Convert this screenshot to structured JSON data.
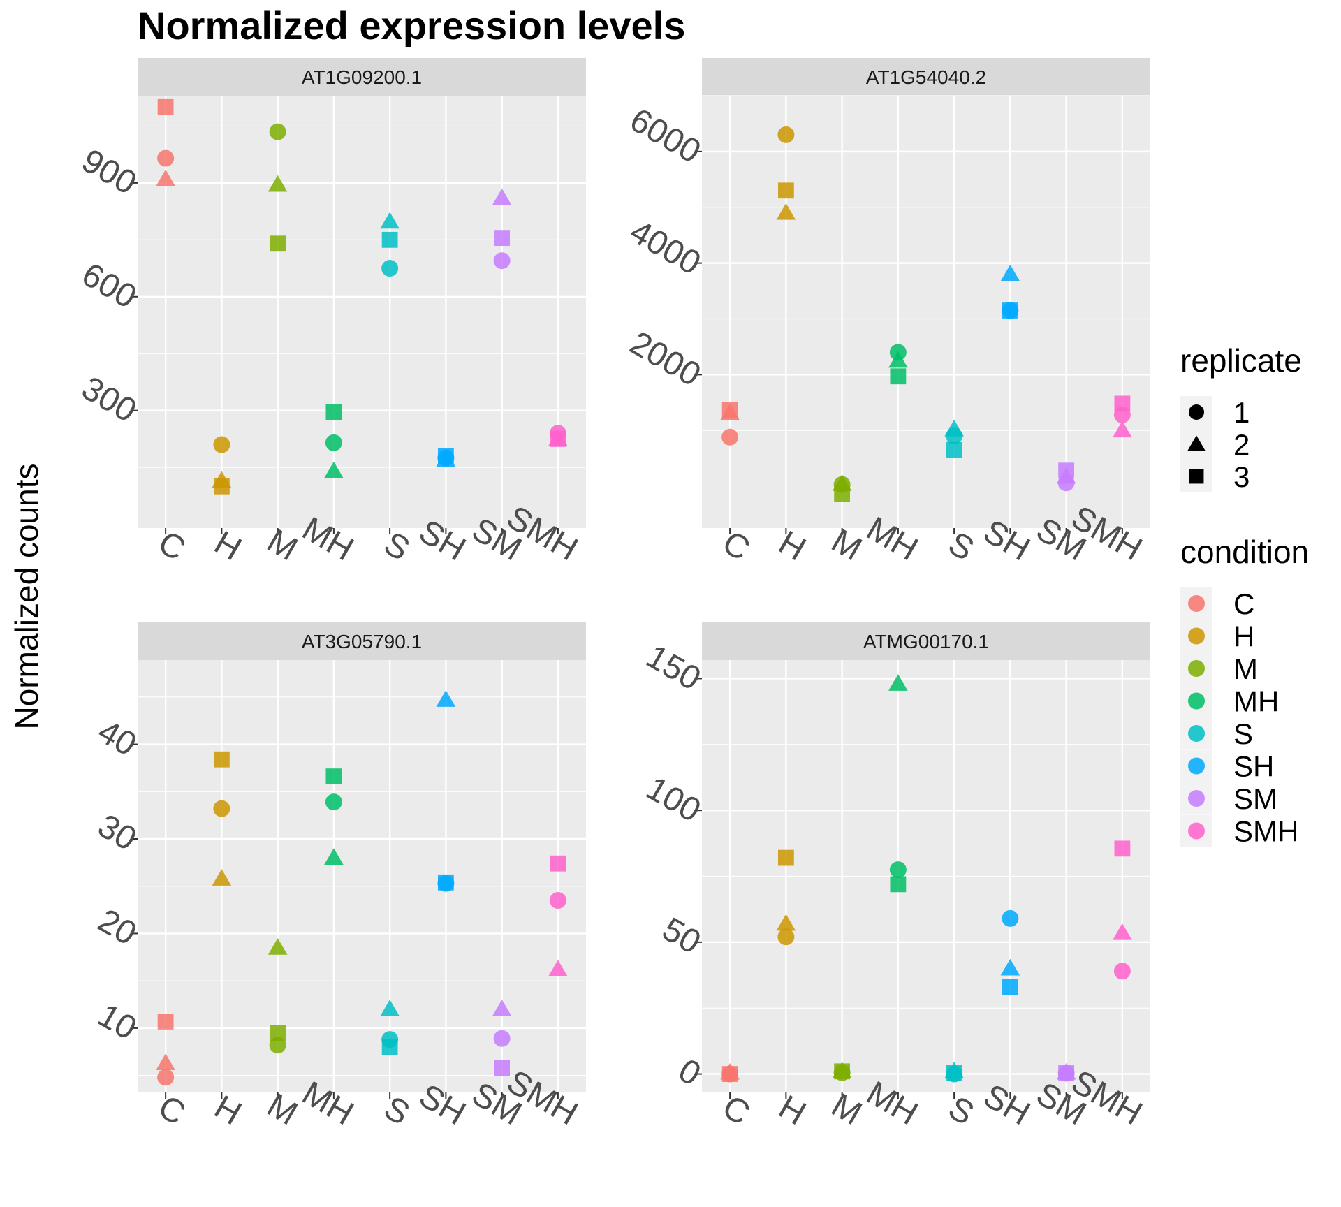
{
  "title": "Normalized expression levels",
  "y_axis_label": "Normalized counts",
  "colors": {
    "panel_bg": "#EBEBEB",
    "strip_bg": "#D9D9D9",
    "grid": "#FFFFFF",
    "C": "#F8766D",
    "H": "#CD9600",
    "M": "#7CAE00",
    "MH": "#00BE67",
    "S": "#00BFC4",
    "SH": "#00A9FF",
    "SM": "#C77CFF",
    "SMH": "#FF61CC"
  },
  "legend": {
    "replicate": {
      "title": "replicate",
      "items": [
        {
          "label": "1",
          "shape": "circle"
        },
        {
          "label": "2",
          "shape": "triangle"
        },
        {
          "label": "3",
          "shape": "square"
        }
      ]
    },
    "condition": {
      "title": "condition",
      "items": [
        "C",
        "H",
        "M",
        "MH",
        "S",
        "SH",
        "SM",
        "SMH"
      ]
    }
  },
  "chart_data": [
    {
      "type": "scatter",
      "facet": "AT1G09200.1",
      "categories": [
        "C",
        "H",
        "M",
        "MH",
        "S",
        "SH",
        "SM",
        "SMH"
      ],
      "yticks": [
        300,
        600,
        900
      ],
      "ylim": [
        -10,
        1130
      ],
      "series": [
        {
          "name": "1",
          "values": [
            965,
            210,
            1035,
            215,
            675,
            175,
            695,
            240
          ]
        },
        {
          "name": "2",
          "values": [
            910,
            115,
            895,
            140,
            798,
            170,
            860,
            225
          ]
        },
        {
          "name": "3",
          "values": [
            1100,
            100,
            740,
            295,
            750,
            180,
            755,
            225
          ]
        }
      ]
    },
    {
      "type": "scatter",
      "facet": "AT1G54040.2",
      "categories": [
        "C",
        "H",
        "M",
        "MH",
        "S",
        "SH",
        "SM",
        "SMH"
      ],
      "yticks": [
        2000,
        4000,
        6000
      ],
      "ylim": [
        -750,
        7000
      ],
      "series": [
        {
          "name": "1",
          "values": [
            880,
            6300,
            30,
            2400,
            900,
            3150,
            60,
            1280
          ]
        },
        {
          "name": "2",
          "values": [
            1310,
            4900,
            40,
            2250,
            1020,
            3800,
            170,
            1000
          ]
        },
        {
          "name": "3",
          "values": [
            1370,
            5300,
            -140,
            1970,
            650,
            3150,
            280,
            1480
          ]
        }
      ]
    },
    {
      "type": "scatter",
      "facet": "AT3G05790.1",
      "categories": [
        "C",
        "H",
        "M",
        "MH",
        "S",
        "SH",
        "SM",
        "SMH"
      ],
      "yticks": [
        10,
        20,
        30,
        40
      ],
      "ylim": [
        3.2,
        48.9
      ],
      "series": [
        {
          "name": "1",
          "values": [
            4.8,
            33.2,
            8.2,
            33.9,
            8.8,
            25.3,
            8.9,
            23.5
          ]
        },
        {
          "name": "2",
          "values": [
            6.3,
            25.8,
            18.5,
            28.0,
            12.0,
            44.7,
            12.0,
            16.2
          ]
        },
        {
          "name": "3",
          "values": [
            10.7,
            38.4,
            9.5,
            36.6,
            8.0,
            25.4,
            5.8,
            27.4
          ]
        }
      ]
    },
    {
      "type": "scatter",
      "facet": "ATMG00170.1",
      "categories": [
        "C",
        "H",
        "M",
        "MH",
        "S",
        "SH",
        "SM",
        "SMH"
      ],
      "yticks": [
        0,
        50,
        100,
        150
      ],
      "ylim": [
        -7,
        157
      ],
      "series": [
        {
          "name": "1",
          "values": [
            0,
            52,
            0.5,
            77.5,
            0,
            59,
            0.3,
            39
          ]
        },
        {
          "name": "2",
          "values": [
            0.5,
            57,
            1,
            148,
            1,
            40,
            0.5,
            53.5
          ]
        },
        {
          "name": "3",
          "values": [
            0,
            82,
            1,
            72,
            0.5,
            33,
            0.3,
            85.5
          ]
        }
      ]
    }
  ]
}
